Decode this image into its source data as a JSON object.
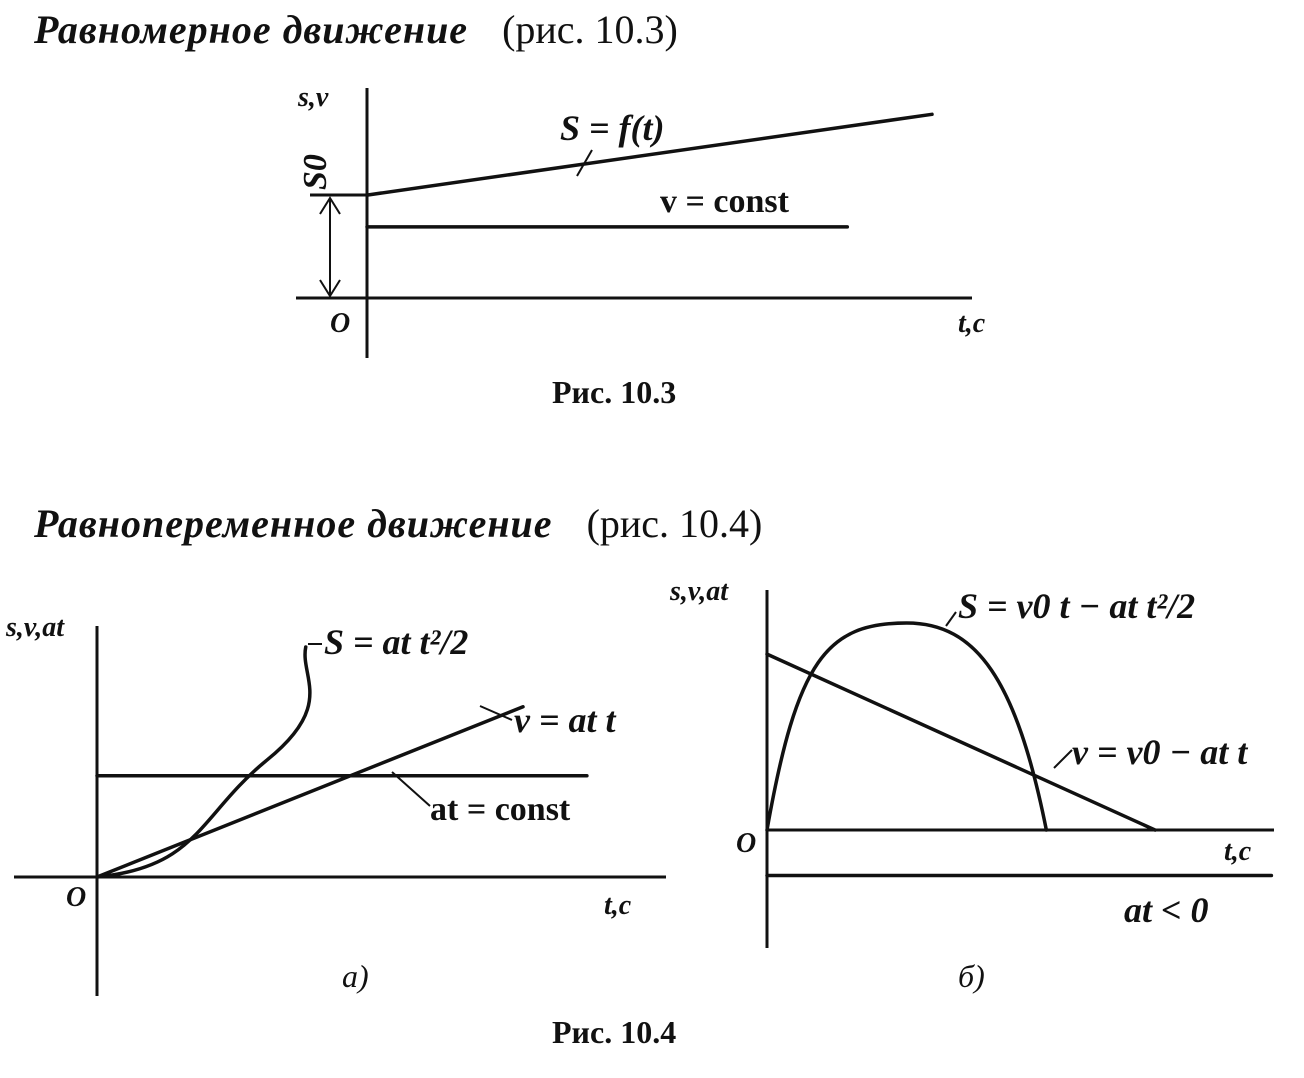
{
  "sections": {
    "uniform": {
      "title": "Равномерное движение",
      "ref": "(рис. 10.3)",
      "caption": "Рис.  10.3"
    },
    "accelerated": {
      "title": "Равнопеременное движение",
      "ref": "(рис. 10.4)",
      "caption": "Рис.  10.4",
      "sub_a": "а)",
      "sub_b": "б)"
    }
  },
  "chart_data": [
    {
      "id": "fig-10-3",
      "type": "line",
      "title": "",
      "ylabel": "s,v",
      "xlabel": "t,c",
      "origin_label": "O",
      "grid": false,
      "series": [
        {
          "name": "S = f(t)",
          "x": [
            0,
            1
          ],
          "values": [
            0.42,
            0.75
          ]
        },
        {
          "name": "v = const",
          "x": [
            0,
            0.85
          ],
          "values": [
            0.29,
            0.29
          ]
        }
      ],
      "annotations": [
        {
          "label": "S0",
          "value": 0.42
        }
      ]
    },
    {
      "id": "fig-10-4a",
      "type": "line",
      "title": "",
      "ylabel": "s,v,at",
      "xlabel": "t,c",
      "origin_label": "O",
      "grid": false,
      "series": [
        {
          "name": "S = at t²/2",
          "x": [
            0,
            0.24,
            0.4,
            0.49
          ],
          "values": [
            0,
            0.27,
            0.51,
            1.0
          ]
        },
        {
          "name": "v = at t",
          "x": [
            0,
            1
          ],
          "values": [
            0,
            0.74
          ]
        },
        {
          "name": "at = const",
          "x": [
            0,
            1.15
          ],
          "values": [
            0.44,
            0.44
          ]
        }
      ]
    },
    {
      "id": "fig-10-4b",
      "type": "line",
      "title": "",
      "ylabel": "s,v,at",
      "xlabel": "t,c",
      "origin_label": "O",
      "grid": false,
      "series": [
        {
          "name": "S = v0 t − at t²/2",
          "x": [
            0,
            0.36,
            0.72
          ],
          "values": [
            0,
            1.0,
            0
          ]
        },
        {
          "name": "v = v0 − at t",
          "x": [
            0,
            1
          ],
          "values": [
            0.85,
            0
          ]
        },
        {
          "name": "at < 0",
          "x": [
            0,
            1.3
          ],
          "values": [
            -0.22,
            -0.22
          ]
        }
      ]
    }
  ]
}
